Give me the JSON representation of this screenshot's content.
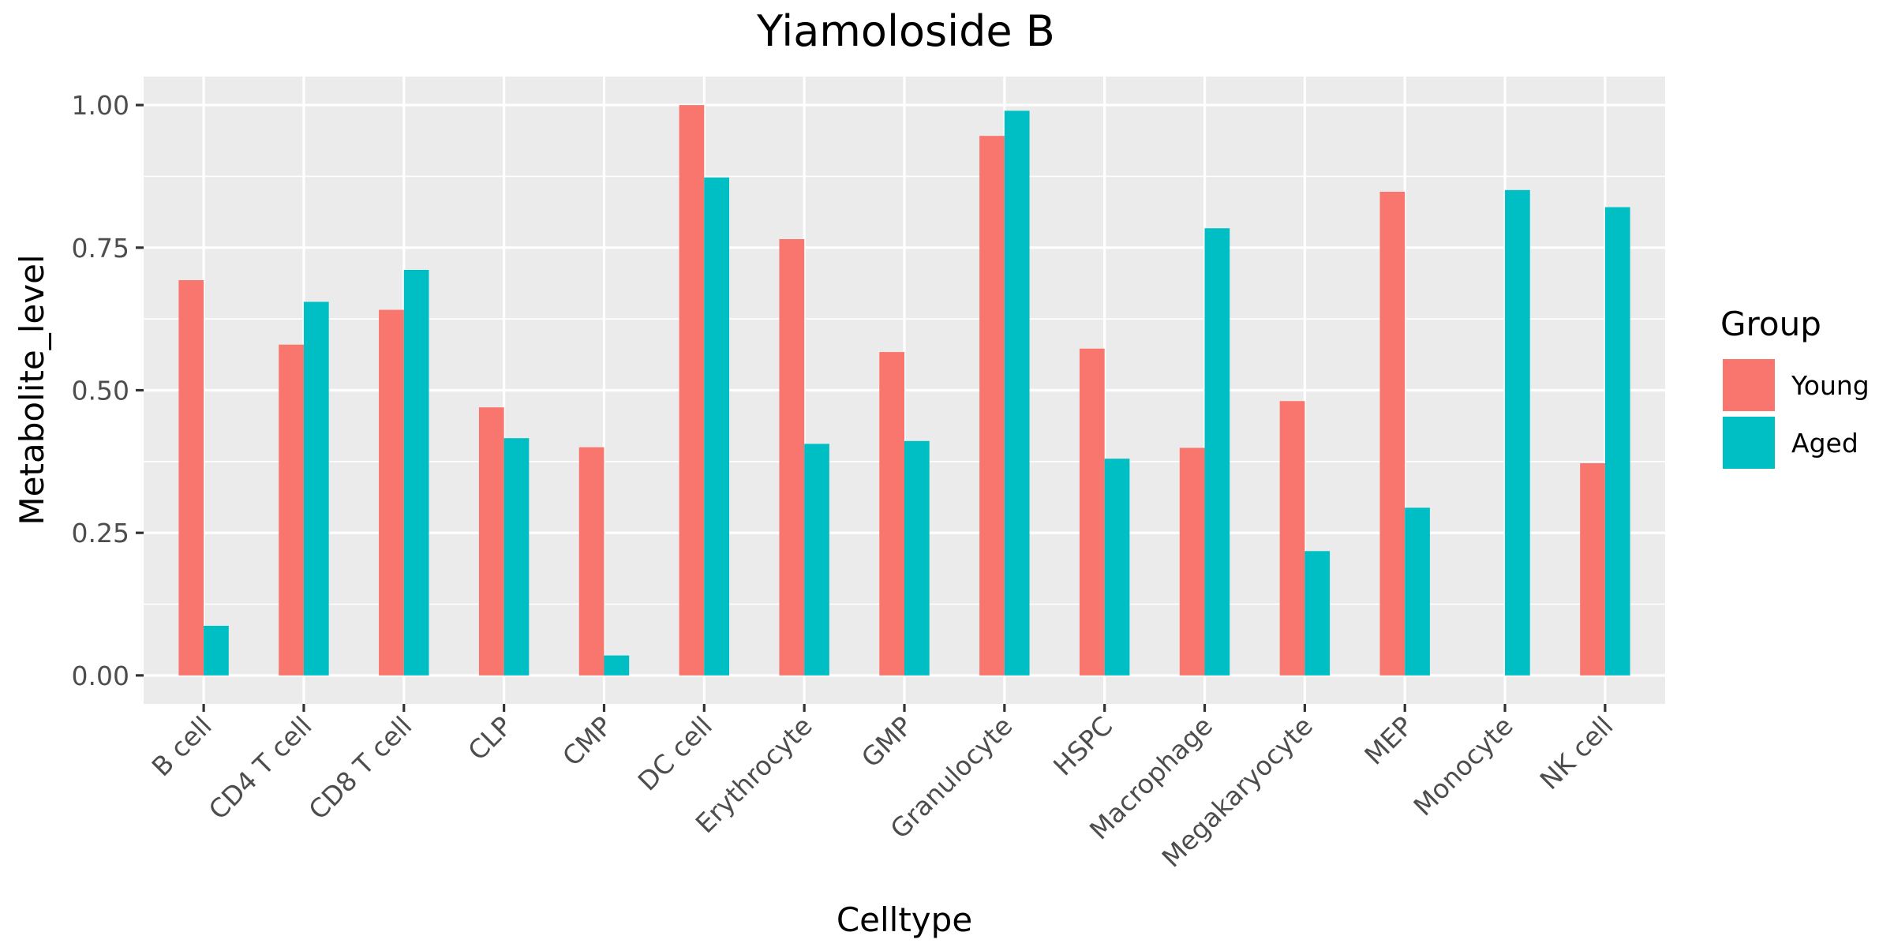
{
  "chart_data": {
    "type": "bar",
    "title": "Yiamoloside B",
    "xlabel": "Celltype",
    "ylabel": "Metabolite_level",
    "ylim": [
      -0.05,
      1.05
    ],
    "yticks": [
      0,
      0.25,
      0.5,
      0.75,
      1
    ],
    "ytick_labels": [
      "0.00",
      "0.25",
      "0.50",
      "0.75",
      "1.00"
    ],
    "grid": true,
    "legend": {
      "title": "Group",
      "placement": "right"
    },
    "categories": [
      "B cell",
      "CD4 T cell",
      "CD8 T cell",
      "CLP",
      "CMP",
      "DC cell",
      "Erythrocyte",
      "GMP",
      "Granulocyte",
      "HSPC",
      "Macrophage",
      "Megakaryocyte",
      "MEP",
      "Monocyte",
      "NK cell"
    ],
    "series": [
      {
        "name": "Young",
        "color": "#F8766D",
        "values": [
          0.693,
          0.58,
          0.641,
          0.47,
          0.4,
          1.0,
          0.765,
          0.567,
          0.946,
          0.573,
          0.399,
          0.481,
          0.848,
          null,
          0.372
        ]
      },
      {
        "name": "Aged",
        "color": "#00BFC4",
        "values": [
          0.087,
          0.655,
          0.711,
          0.416,
          0.035,
          0.873,
          0.406,
          0.411,
          0.99,
          0.38,
          0.784,
          0.218,
          0.294,
          0.851,
          0.821
        ]
      }
    ]
  }
}
